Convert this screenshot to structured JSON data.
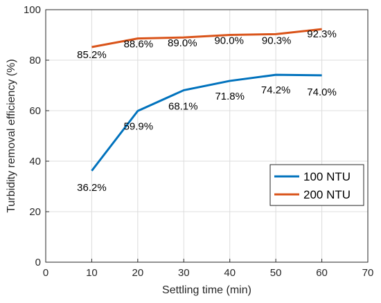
{
  "chart_data": {
    "type": "line",
    "title": "",
    "xlabel": "Settling time (min)",
    "ylabel": "Turbidity removal efficiency (%)",
    "xlim": [
      0,
      70
    ],
    "ylim": [
      0,
      100
    ],
    "xticks": [
      0,
      10,
      20,
      30,
      40,
      50,
      60,
      70
    ],
    "yticks": [
      0,
      20,
      40,
      60,
      80,
      100
    ],
    "grid": true,
    "legend_position": "lower-right",
    "series": [
      {
        "name": "100 NTU",
        "color": "#0072BD",
        "x": [
          10,
          20,
          30,
          40,
          50,
          60
        ],
        "y": [
          36.2,
          59.9,
          68.1,
          71.8,
          74.2,
          74.0
        ],
        "labels": [
          "36.2%",
          "59.9%",
          "68.1%",
          "71.8%",
          "74.2%",
          "74.0%"
        ]
      },
      {
        "name": "200 NTU",
        "color": "#D95319",
        "x": [
          10,
          20,
          30,
          40,
          50,
          60
        ],
        "y": [
          85.2,
          88.6,
          89.0,
          90.0,
          90.3,
          92.3
        ],
        "labels": [
          "85.2%",
          "88.6%",
          "89.0%",
          "90.0%",
          "90.3%",
          "92.3%"
        ]
      }
    ]
  }
}
